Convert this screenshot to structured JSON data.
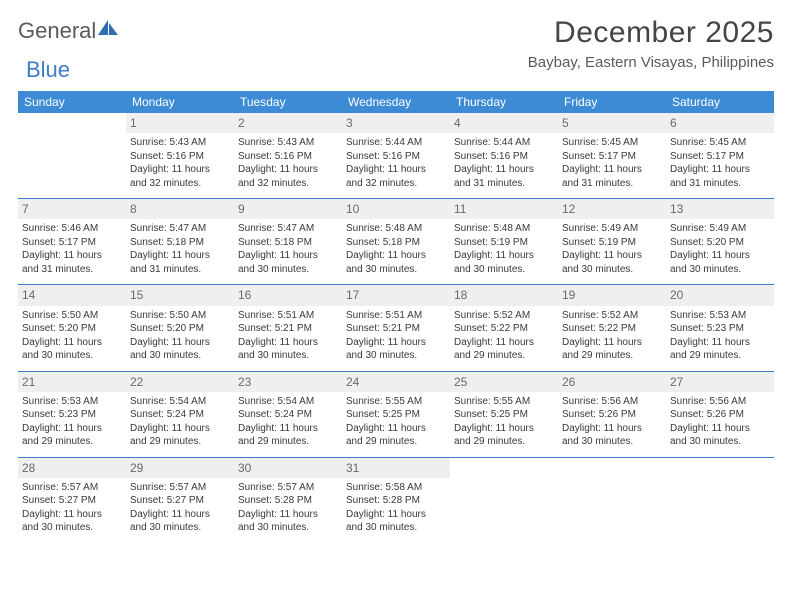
{
  "logo": {
    "general": "General",
    "blue": "Blue"
  },
  "title": {
    "month": "December 2025",
    "location": "Baybay, Eastern Visayas, Philippines"
  },
  "header_bg": "#3d8bd4",
  "rule_color": "#3d7cc9",
  "daynum_bg": "#efefef",
  "weekdays": [
    "Sunday",
    "Monday",
    "Tuesday",
    "Wednesday",
    "Thursday",
    "Friday",
    "Saturday"
  ],
  "weeks": [
    [
      null,
      {
        "n": "1",
        "sr": "Sunrise: 5:43 AM",
        "ss": "Sunset: 5:16 PM",
        "d1": "Daylight: 11 hours",
        "d2": "and 32 minutes."
      },
      {
        "n": "2",
        "sr": "Sunrise: 5:43 AM",
        "ss": "Sunset: 5:16 PM",
        "d1": "Daylight: 11 hours",
        "d2": "and 32 minutes."
      },
      {
        "n": "3",
        "sr": "Sunrise: 5:44 AM",
        "ss": "Sunset: 5:16 PM",
        "d1": "Daylight: 11 hours",
        "d2": "and 32 minutes."
      },
      {
        "n": "4",
        "sr": "Sunrise: 5:44 AM",
        "ss": "Sunset: 5:16 PM",
        "d1": "Daylight: 11 hours",
        "d2": "and 31 minutes."
      },
      {
        "n": "5",
        "sr": "Sunrise: 5:45 AM",
        "ss": "Sunset: 5:17 PM",
        "d1": "Daylight: 11 hours",
        "d2": "and 31 minutes."
      },
      {
        "n": "6",
        "sr": "Sunrise: 5:45 AM",
        "ss": "Sunset: 5:17 PM",
        "d1": "Daylight: 11 hours",
        "d2": "and 31 minutes."
      }
    ],
    [
      {
        "n": "7",
        "sr": "Sunrise: 5:46 AM",
        "ss": "Sunset: 5:17 PM",
        "d1": "Daylight: 11 hours",
        "d2": "and 31 minutes."
      },
      {
        "n": "8",
        "sr": "Sunrise: 5:47 AM",
        "ss": "Sunset: 5:18 PM",
        "d1": "Daylight: 11 hours",
        "d2": "and 31 minutes."
      },
      {
        "n": "9",
        "sr": "Sunrise: 5:47 AM",
        "ss": "Sunset: 5:18 PM",
        "d1": "Daylight: 11 hours",
        "d2": "and 30 minutes."
      },
      {
        "n": "10",
        "sr": "Sunrise: 5:48 AM",
        "ss": "Sunset: 5:18 PM",
        "d1": "Daylight: 11 hours",
        "d2": "and 30 minutes."
      },
      {
        "n": "11",
        "sr": "Sunrise: 5:48 AM",
        "ss": "Sunset: 5:19 PM",
        "d1": "Daylight: 11 hours",
        "d2": "and 30 minutes."
      },
      {
        "n": "12",
        "sr": "Sunrise: 5:49 AM",
        "ss": "Sunset: 5:19 PM",
        "d1": "Daylight: 11 hours",
        "d2": "and 30 minutes."
      },
      {
        "n": "13",
        "sr": "Sunrise: 5:49 AM",
        "ss": "Sunset: 5:20 PM",
        "d1": "Daylight: 11 hours",
        "d2": "and 30 minutes."
      }
    ],
    [
      {
        "n": "14",
        "sr": "Sunrise: 5:50 AM",
        "ss": "Sunset: 5:20 PM",
        "d1": "Daylight: 11 hours",
        "d2": "and 30 minutes."
      },
      {
        "n": "15",
        "sr": "Sunrise: 5:50 AM",
        "ss": "Sunset: 5:20 PM",
        "d1": "Daylight: 11 hours",
        "d2": "and 30 minutes."
      },
      {
        "n": "16",
        "sr": "Sunrise: 5:51 AM",
        "ss": "Sunset: 5:21 PM",
        "d1": "Daylight: 11 hours",
        "d2": "and 30 minutes."
      },
      {
        "n": "17",
        "sr": "Sunrise: 5:51 AM",
        "ss": "Sunset: 5:21 PM",
        "d1": "Daylight: 11 hours",
        "d2": "and 30 minutes."
      },
      {
        "n": "18",
        "sr": "Sunrise: 5:52 AM",
        "ss": "Sunset: 5:22 PM",
        "d1": "Daylight: 11 hours",
        "d2": "and 29 minutes."
      },
      {
        "n": "19",
        "sr": "Sunrise: 5:52 AM",
        "ss": "Sunset: 5:22 PM",
        "d1": "Daylight: 11 hours",
        "d2": "and 29 minutes."
      },
      {
        "n": "20",
        "sr": "Sunrise: 5:53 AM",
        "ss": "Sunset: 5:23 PM",
        "d1": "Daylight: 11 hours",
        "d2": "and 29 minutes."
      }
    ],
    [
      {
        "n": "21",
        "sr": "Sunrise: 5:53 AM",
        "ss": "Sunset: 5:23 PM",
        "d1": "Daylight: 11 hours",
        "d2": "and 29 minutes."
      },
      {
        "n": "22",
        "sr": "Sunrise: 5:54 AM",
        "ss": "Sunset: 5:24 PM",
        "d1": "Daylight: 11 hours",
        "d2": "and 29 minutes."
      },
      {
        "n": "23",
        "sr": "Sunrise: 5:54 AM",
        "ss": "Sunset: 5:24 PM",
        "d1": "Daylight: 11 hours",
        "d2": "and 29 minutes."
      },
      {
        "n": "24",
        "sr": "Sunrise: 5:55 AM",
        "ss": "Sunset: 5:25 PM",
        "d1": "Daylight: 11 hours",
        "d2": "and 29 minutes."
      },
      {
        "n": "25",
        "sr": "Sunrise: 5:55 AM",
        "ss": "Sunset: 5:25 PM",
        "d1": "Daylight: 11 hours",
        "d2": "and 29 minutes."
      },
      {
        "n": "26",
        "sr": "Sunrise: 5:56 AM",
        "ss": "Sunset: 5:26 PM",
        "d1": "Daylight: 11 hours",
        "d2": "and 30 minutes."
      },
      {
        "n": "27",
        "sr": "Sunrise: 5:56 AM",
        "ss": "Sunset: 5:26 PM",
        "d1": "Daylight: 11 hours",
        "d2": "and 30 minutes."
      }
    ],
    [
      {
        "n": "28",
        "sr": "Sunrise: 5:57 AM",
        "ss": "Sunset: 5:27 PM",
        "d1": "Daylight: 11 hours",
        "d2": "and 30 minutes."
      },
      {
        "n": "29",
        "sr": "Sunrise: 5:57 AM",
        "ss": "Sunset: 5:27 PM",
        "d1": "Daylight: 11 hours",
        "d2": "and 30 minutes."
      },
      {
        "n": "30",
        "sr": "Sunrise: 5:57 AM",
        "ss": "Sunset: 5:28 PM",
        "d1": "Daylight: 11 hours",
        "d2": "and 30 minutes."
      },
      {
        "n": "31",
        "sr": "Sunrise: 5:58 AM",
        "ss": "Sunset: 5:28 PM",
        "d1": "Daylight: 11 hours",
        "d2": "and 30 minutes."
      },
      null,
      null,
      null
    ]
  ]
}
